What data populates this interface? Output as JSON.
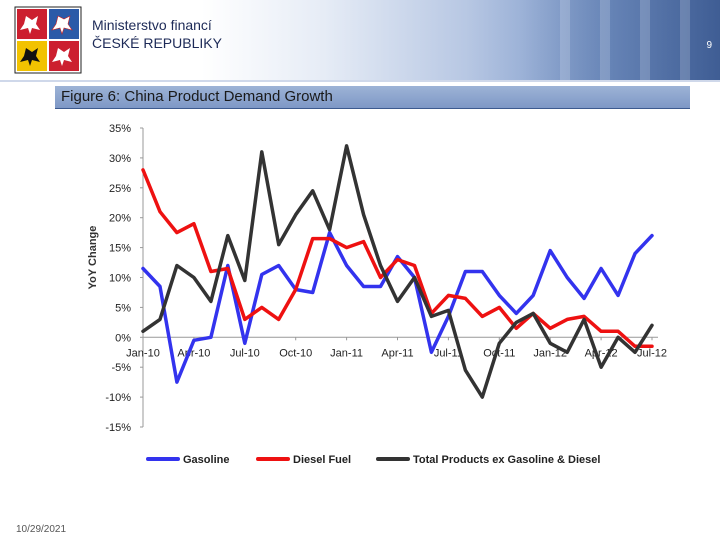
{
  "header": {
    "ministry_line1": "Ministerstvo financí",
    "ministry_line2": "ČESKÉ REPUBLIKY",
    "page_number": "9"
  },
  "figure": {
    "title": "Figure 6: China Product Demand Growth"
  },
  "footer": {
    "date": "10/29/2021"
  },
  "colors": {
    "gasoline": "#3333ee",
    "diesel": "#ee1111",
    "total": "#333333",
    "title_bar": "#8ea6cf"
  },
  "chart_data": {
    "type": "line",
    "title": "Figure 6: China Product Demand Growth",
    "xlabel": "",
    "ylabel": "YoY Change",
    "ylim": [
      -15,
      35
    ],
    "y_ticks": [
      "35%",
      "30%",
      "25%",
      "20%",
      "15%",
      "10%",
      "5%",
      "0%",
      "-5%",
      "-10%",
      "-15%"
    ],
    "x_ticks": [
      "Jan-10",
      "Apr-10",
      "Jul-10",
      "Oct-10",
      "Jan-11",
      "Apr-11",
      "Jul-11",
      "Oct-11",
      "Jan-12",
      "Apr-12",
      "Jul-12"
    ],
    "x_months": [
      "Jan-10",
      "Feb-10",
      "Mar-10",
      "Apr-10",
      "May-10",
      "Jun-10",
      "Jul-10",
      "Aug-10",
      "Sep-10",
      "Oct-10",
      "Nov-10",
      "Dec-10",
      "Jan-11",
      "Feb-11",
      "Mar-11",
      "Apr-11",
      "May-11",
      "Jun-11",
      "Jul-11",
      "Aug-11",
      "Sep-11",
      "Oct-11",
      "Nov-11",
      "Dec-11",
      "Jan-12",
      "Feb-12",
      "Mar-12",
      "Apr-12",
      "May-12",
      "Jun-12",
      "Jul-12"
    ],
    "legend_position": "bottom",
    "series": [
      {
        "name": "Gasoline",
        "values": [
          11.5,
          8.5,
          -7.5,
          -0.5,
          0,
          12,
          -1,
          10.5,
          12,
          8,
          7.5,
          17.5,
          12,
          8.5,
          8.5,
          13.5,
          10,
          -2.5,
          3.5,
          11,
          11,
          7,
          4,
          7,
          14.5,
          10,
          6.5,
          11.5,
          7,
          14,
          17
        ]
      },
      {
        "name": "Diesel Fuel",
        "values": [
          28,
          21,
          17.5,
          19,
          11,
          11.5,
          3,
          5,
          3,
          8,
          16.5,
          16.5,
          15,
          16,
          10,
          13,
          12,
          4,
          7,
          6.5,
          3.5,
          5,
          1.5,
          4,
          1.5,
          3,
          3.5,
          1,
          1,
          -1.5,
          -1.5
        ]
      },
      {
        "name": "Total Products ex Gasoline & Diesel",
        "values": [
          1,
          3,
          12,
          10,
          6,
          17,
          9.5,
          31,
          15.5,
          20.5,
          24.5,
          18,
          32,
          20.5,
          12,
          6,
          10,
          3.5,
          4.5,
          -5.5,
          -10,
          -1,
          2.5,
          4,
          -1,
          -2.5,
          3,
          -5,
          0,
          -2.5,
          2
        ]
      }
    ]
  }
}
